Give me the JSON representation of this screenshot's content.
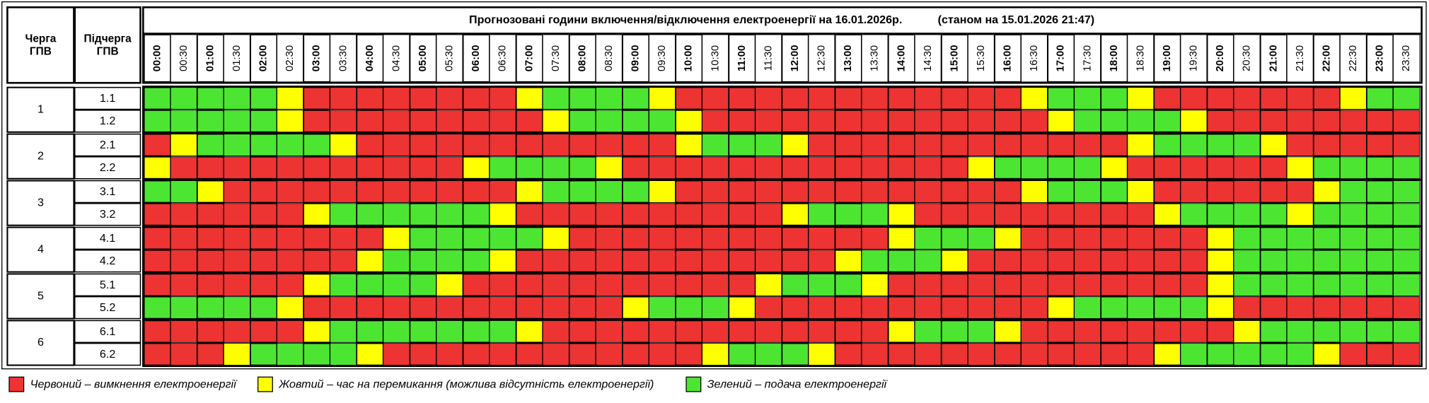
{
  "header": {
    "queue": [
      "Черга",
      "ГПВ"
    ],
    "subqueue": [
      "Підчерга",
      "ГПВ"
    ],
    "title": "Прогнозовані години включення/відключення електроенергії на 16.01.2026р.",
    "as_of": "(станом на 15.01.2026 21:47)"
  },
  "times": [
    "00:00",
    "00:30",
    "01:00",
    "01:30",
    "02:00",
    "02:30",
    "03:00",
    "03:30",
    "04:00",
    "04:30",
    "05:00",
    "05:30",
    "06:00",
    "06:30",
    "07:00",
    "07:30",
    "08:00",
    "08:30",
    "09:00",
    "09:30",
    "10:00",
    "10:30",
    "11:00",
    "11:30",
    "12:00",
    "12:30",
    "13:00",
    "13:30",
    "14:00",
    "14:30",
    "15:00",
    "15:30",
    "16:00",
    "16:30",
    "17:00",
    "17:30",
    "18:00",
    "18:30",
    "19:00",
    "19:30",
    "20:00",
    "20:30",
    "21:00",
    "21:30",
    "22:00",
    "22:30",
    "23:00",
    "23:30"
  ],
  "legend": [
    {
      "color": "#ee3333",
      "text": "Червоний – вимкнення електроенергії"
    },
    {
      "color": "#ffff00",
      "text": "Жовтий – час на перемикання (можлива відсутність електроенергії)"
    },
    {
      "color": "#4ce632",
      "text": "Зелений – подача електроенергії"
    }
  ],
  "groups": [
    {
      "label": "1",
      "subgroups": [
        {
          "label": "1.1",
          "slots": [
            2,
            2,
            2,
            2,
            2,
            1,
            0,
            0,
            0,
            0,
            0,
            0,
            0,
            0,
            1,
            2,
            2,
            2,
            2,
            1,
            0,
            0,
            0,
            0,
            0,
            0,
            0,
            0,
            0,
            0,
            0,
            0,
            0,
            1,
            2,
            2,
            2,
            1,
            0,
            0,
            0,
            0,
            0,
            0,
            0,
            1,
            2,
            2
          ]
        },
        {
          "label": "1.2",
          "slots": [
            2,
            2,
            2,
            2,
            2,
            1,
            0,
            0,
            0,
            0,
            0,
            0,
            0,
            0,
            0,
            1,
            2,
            2,
            2,
            2,
            1,
            0,
            0,
            0,
            0,
            0,
            0,
            0,
            0,
            0,
            0,
            0,
            0,
            0,
            1,
            2,
            2,
            2,
            2,
            1,
            0,
            0,
            0,
            0,
            0,
            0,
            0,
            0
          ]
        }
      ]
    },
    {
      "label": "2",
      "subgroups": [
        {
          "label": "2.1",
          "slots": [
            0,
            1,
            2,
            2,
            2,
            2,
            2,
            1,
            0,
            0,
            0,
            0,
            0,
            0,
            0,
            0,
            0,
            0,
            0,
            0,
            1,
            2,
            2,
            2,
            1,
            0,
            0,
            0,
            0,
            0,
            0,
            0,
            0,
            0,
            0,
            0,
            0,
            1,
            2,
            2,
            2,
            2,
            1,
            0,
            0,
            0,
            0,
            0
          ]
        },
        {
          "label": "2.2",
          "slots": [
            1,
            0,
            0,
            0,
            0,
            0,
            0,
            0,
            0,
            0,
            0,
            0,
            1,
            2,
            2,
            2,
            2,
            1,
            0,
            0,
            0,
            0,
            0,
            0,
            0,
            0,
            0,
            0,
            0,
            0,
            0,
            1,
            2,
            2,
            2,
            2,
            1,
            0,
            0,
            0,
            0,
            0,
            0,
            1,
            2,
            2,
            2,
            2
          ]
        }
      ]
    },
    {
      "label": "3",
      "subgroups": [
        {
          "label": "3.1",
          "slots": [
            2,
            2,
            1,
            0,
            0,
            0,
            0,
            0,
            0,
            0,
            0,
            0,
            0,
            0,
            1,
            2,
            2,
            2,
            2,
            1,
            0,
            0,
            0,
            0,
            0,
            0,
            0,
            0,
            0,
            0,
            0,
            0,
            0,
            1,
            2,
            2,
            2,
            1,
            0,
            0,
            0,
            0,
            0,
            0,
            1,
            2,
            2,
            2
          ]
        },
        {
          "label": "3.2",
          "slots": [
            0,
            0,
            0,
            0,
            0,
            0,
            1,
            2,
            2,
            2,
            2,
            2,
            2,
            1,
            0,
            0,
            0,
            0,
            0,
            0,
            0,
            0,
            0,
            0,
            1,
            2,
            2,
            2,
            1,
            0,
            0,
            0,
            0,
            0,
            0,
            0,
            0,
            0,
            1,
            2,
            2,
            2,
            2,
            1,
            2,
            2,
            2,
            2
          ]
        }
      ]
    },
    {
      "label": "4",
      "subgroups": [
        {
          "label": "4.1",
          "slots": [
            0,
            0,
            0,
            0,
            0,
            0,
            0,
            0,
            0,
            1,
            2,
            2,
            2,
            2,
            2,
            1,
            0,
            0,
            0,
            0,
            0,
            0,
            0,
            0,
            0,
            0,
            0,
            0,
            1,
            2,
            2,
            2,
            1,
            0,
            0,
            0,
            0,
            0,
            0,
            0,
            1,
            2,
            2,
            2,
            2,
            2,
            2,
            2
          ]
        },
        {
          "label": "4.2",
          "slots": [
            0,
            0,
            0,
            0,
            0,
            0,
            0,
            0,
            1,
            2,
            2,
            2,
            2,
            1,
            0,
            0,
            0,
            0,
            0,
            0,
            0,
            0,
            0,
            0,
            0,
            0,
            1,
            2,
            2,
            2,
            1,
            0,
            0,
            0,
            0,
            0,
            0,
            0,
            0,
            0,
            1,
            2,
            2,
            2,
            2,
            2,
            2,
            2
          ]
        }
      ]
    },
    {
      "label": "5",
      "subgroups": [
        {
          "label": "5.1",
          "slots": [
            0,
            0,
            0,
            0,
            0,
            0,
            1,
            2,
            2,
            2,
            2,
            1,
            0,
            0,
            0,
            0,
            0,
            0,
            0,
            0,
            0,
            0,
            0,
            1,
            2,
            2,
            2,
            1,
            0,
            0,
            0,
            0,
            0,
            0,
            0,
            0,
            0,
            0,
            0,
            0,
            1,
            2,
            2,
            2,
            2,
            2,
            2,
            2
          ]
        },
        {
          "label": "5.2",
          "slots": [
            2,
            2,
            2,
            2,
            2,
            1,
            0,
            0,
            0,
            0,
            0,
            0,
            0,
            0,
            0,
            0,
            0,
            0,
            1,
            2,
            2,
            2,
            1,
            0,
            0,
            0,
            0,
            0,
            0,
            0,
            0,
            0,
            0,
            0,
            1,
            2,
            2,
            2,
            2,
            2,
            1,
            0,
            0,
            0,
            0,
            0,
            0,
            0
          ]
        }
      ]
    },
    {
      "label": "6",
      "subgroups": [
        {
          "label": "6.1",
          "slots": [
            0,
            0,
            0,
            0,
            0,
            0,
            1,
            2,
            2,
            2,
            2,
            2,
            2,
            2,
            1,
            0,
            0,
            0,
            0,
            0,
            0,
            0,
            0,
            0,
            0,
            0,
            0,
            0,
            1,
            2,
            2,
            2,
            1,
            0,
            0,
            0,
            0,
            0,
            0,
            0,
            0,
            1,
            2,
            2,
            2,
            2,
            2,
            2
          ]
        },
        {
          "label": "6.2",
          "slots": [
            0,
            0,
            0,
            1,
            2,
            2,
            2,
            2,
            1,
            0,
            0,
            0,
            0,
            0,
            0,
            0,
            0,
            0,
            0,
            0,
            0,
            1,
            2,
            2,
            2,
            1,
            0,
            0,
            0,
            0,
            0,
            0,
            0,
            0,
            0,
            0,
            0,
            0,
            1,
            2,
            2,
            2,
            2,
            2,
            1,
            0,
            0,
            0
          ]
        }
      ]
    }
  ]
}
